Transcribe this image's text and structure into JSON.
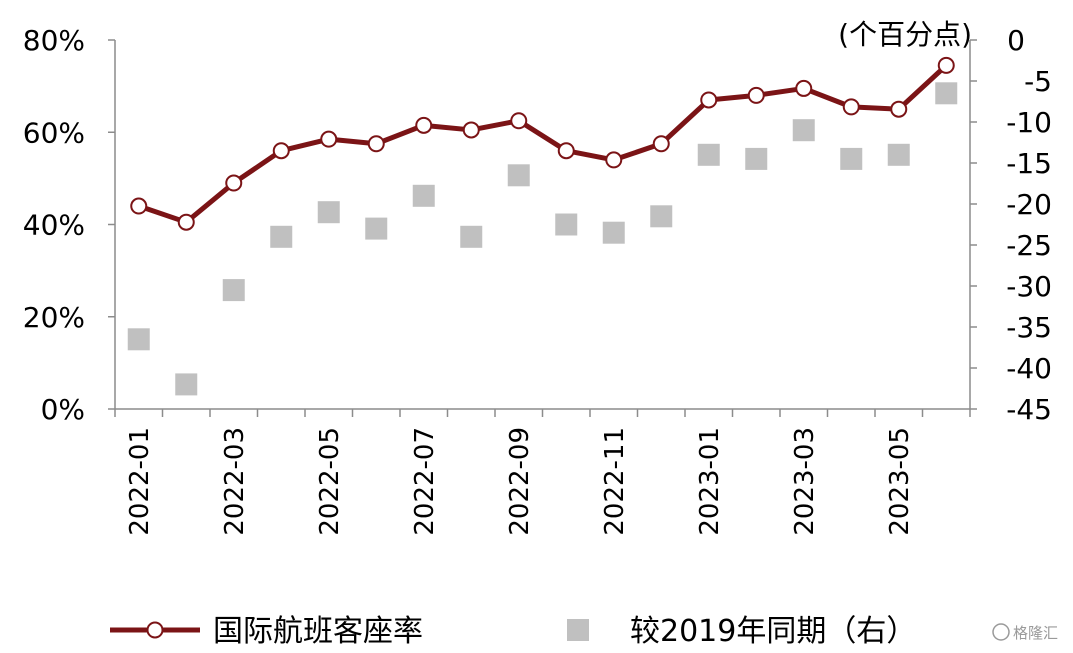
{
  "chart_data": {
    "type": "line",
    "title": "",
    "categories": [
      "2022-01",
      "2022-02",
      "2022-03",
      "2022-04",
      "2022-05",
      "2022-06",
      "2022-07",
      "2022-08",
      "2022-09",
      "2022-10",
      "2022-11",
      "2022-12",
      "2023-01",
      "2023-02",
      "2023-03",
      "2023-04",
      "2023-05",
      "2023-06"
    ],
    "x_tick_labels": [
      "2022-01",
      "2022-03",
      "2022-05",
      "2022-07",
      "2022-09",
      "2022-11",
      "2023-01",
      "2023-03",
      "2023-05"
    ],
    "y_left": {
      "ticks": [
        "80%",
        "60%",
        "40%",
        "20%",
        "0%"
      ],
      "values": [
        80,
        60,
        40,
        20,
        0
      ],
      "ylim": [
        0,
        80
      ]
    },
    "y_right": {
      "unit": "(个百分点)",
      "ticks": [
        "0",
        "-5",
        "-10",
        "-15",
        "-20",
        "-25",
        "-30",
        "-35",
        "-40",
        "-45"
      ],
      "values": [
        0,
        -5,
        -10,
        -15,
        -20,
        -25,
        -30,
        -35,
        -40,
        -45
      ],
      "ylim": [
        -45,
        0
      ]
    },
    "series": [
      {
        "name": "国际航班客座率",
        "type": "line",
        "axis": "left",
        "color": "#7b1416",
        "values": [
          44.0,
          40.5,
          49.0,
          56.0,
          58.5,
          57.5,
          61.5,
          60.5,
          62.5,
          56.0,
          54.0,
          57.5,
          67.0,
          68.0,
          69.5,
          65.5,
          65.0,
          74.5
        ]
      },
      {
        "name": "较2019年同期（右）",
        "type": "scatter",
        "axis": "right",
        "color": "#c0c0c0",
        "values": [
          -36.5,
          -42.0,
          -30.5,
          -24.0,
          -21.0,
          -23.0,
          -19.0,
          -24.0,
          -16.5,
          -22.5,
          -23.5,
          -21.5,
          -14.0,
          -14.5,
          -11.0,
          -14.5,
          -14.0,
          -6.5
        ]
      }
    ],
    "legend": {
      "position": "bottom",
      "entries": [
        "国际航班客座率",
        "较2019年同期（右）"
      ]
    },
    "grid": false
  },
  "watermark": "格隆汇"
}
